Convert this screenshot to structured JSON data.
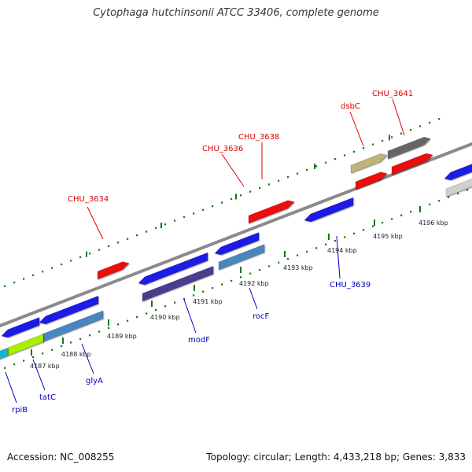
{
  "title": "Cytophaga hutchinsonii ATCC 33406, complete genome",
  "footer": {
    "accession": "Accession: NC_008255",
    "summary": "Topology: circular; Length: 4,433,218 bp; Genes: 3,833"
  },
  "colors": {
    "forward_label": "#dd0000",
    "reverse_label": "#0000bb",
    "backbone": "#888888",
    "tick": "#117711",
    "red": "#ee1111",
    "blue": "#1a1ae6",
    "steel": "#4a86c0",
    "purple": "#4a3c8e",
    "khaki": "#bdb476",
    "gray": "#666666",
    "lightgray": "#cfcfcf",
    "lime": "#a8f000",
    "cyan": "#11b8d0"
  },
  "ruler": {
    "unit": "kbp",
    "ticks": [
      "4187 kbp",
      "4188 kbp",
      "4189 kbp",
      "4190 kbp",
      "4191 kbp",
      "4192 kbp",
      "4193 kbp",
      "4194 kbp",
      "4195 kbp",
      "4196 kbp"
    ]
  },
  "forward_labels": [
    {
      "name": "CHU_3634"
    },
    {
      "name": "CHU_3636"
    },
    {
      "name": "CHU_3638"
    },
    {
      "name": "dsbC"
    },
    {
      "name": "CHU_3641"
    }
  ],
  "reverse_labels": [
    {
      "name": "rpiB"
    },
    {
      "name": "tatC"
    },
    {
      "name": "glyA"
    },
    {
      "name": "modF"
    },
    {
      "name": "rocF"
    },
    {
      "name": "CHU_3639"
    }
  ]
}
